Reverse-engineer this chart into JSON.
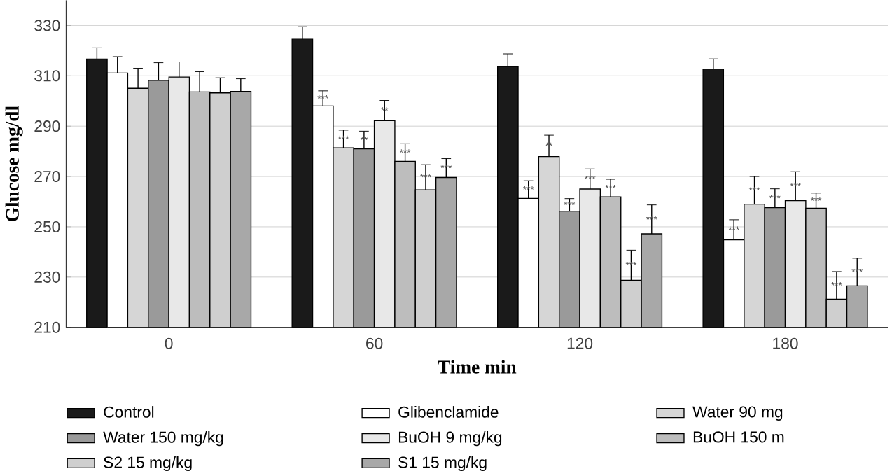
{
  "chart_data": {
    "type": "bar",
    "xlabel": "Time min",
    "ylabel": "Glucose mg/dl",
    "categories": [
      "0",
      "60",
      "120",
      "180"
    ],
    "ylim": [
      210,
      340
    ],
    "yticks": [
      210,
      230,
      250,
      270,
      290,
      310,
      330
    ],
    "grid": "y",
    "legend": "bottom",
    "series": [
      {
        "name": "Control",
        "color": "#1a1a1a",
        "values": [
          316.6,
          324.5,
          313.7,
          312.7
        ],
        "errors": [
          4.5,
          5,
          5,
          4
        ],
        "value_labels": [
          null,
          null,
          null,
          null
        ]
      },
      {
        "name": "Glibenclamide",
        "color": "#ffffff",
        "values": [
          311.1,
          298,
          261.3,
          244.8
        ],
        "errors": [
          6.5,
          6,
          7,
          8
        ],
        "value_labels": [
          null,
          "***",
          "***",
          "***"
        ]
      },
      {
        "name": "Water 90 mg",
        "color": "#d6d6d6",
        "values": [
          305,
          281.4,
          277.9,
          259
        ],
        "errors": [
          8,
          7,
          8.5,
          11
        ],
        "value_labels": [
          null,
          "***",
          "**",
          "***"
        ]
      },
      {
        "name": "Water 150 mg/kg",
        "color": "#9a9a9a",
        "values": [
          308.2,
          281,
          256.2,
          257.6
        ],
        "errors": [
          7,
          7,
          5,
          7.5
        ],
        "value_labels": [
          null,
          "**",
          "***",
          "***"
        ]
      },
      {
        "name": "BuOH 9 mg/kg",
        "color": "#e8e8e8",
        "values": [
          309.5,
          292.2,
          265,
          260.4
        ],
        "errors": [
          6,
          8,
          8,
          11.5
        ],
        "value_labels": [
          null,
          "**",
          "***",
          "***"
        ]
      },
      {
        "name": "BuOH 150 m",
        "color": "#bdbdbd",
        "values": [
          303.6,
          276,
          261.9,
          257.4
        ],
        "errors": [
          8,
          7,
          7,
          6
        ],
        "value_labels": [
          null,
          "***",
          "***",
          "***"
        ]
      },
      {
        "name": "S2 15 mg/kg",
        "color": "#cfcfcf",
        "values": [
          303.2,
          264.7,
          228.7,
          221.2
        ],
        "errors": [
          6,
          10,
          12,
          11
        ],
        "value_labels": [
          null,
          "***",
          "***",
          "***"
        ]
      },
      {
        "name": "S1 15 mg/kg",
        "color": "#a8a8a8",
        "values": [
          303.8,
          269.6,
          247.2,
          226.5
        ],
        "errors": [
          5,
          7.5,
          11.5,
          11
        ],
        "value_labels": [
          null,
          "***",
          "***",
          "***"
        ]
      }
    ]
  }
}
